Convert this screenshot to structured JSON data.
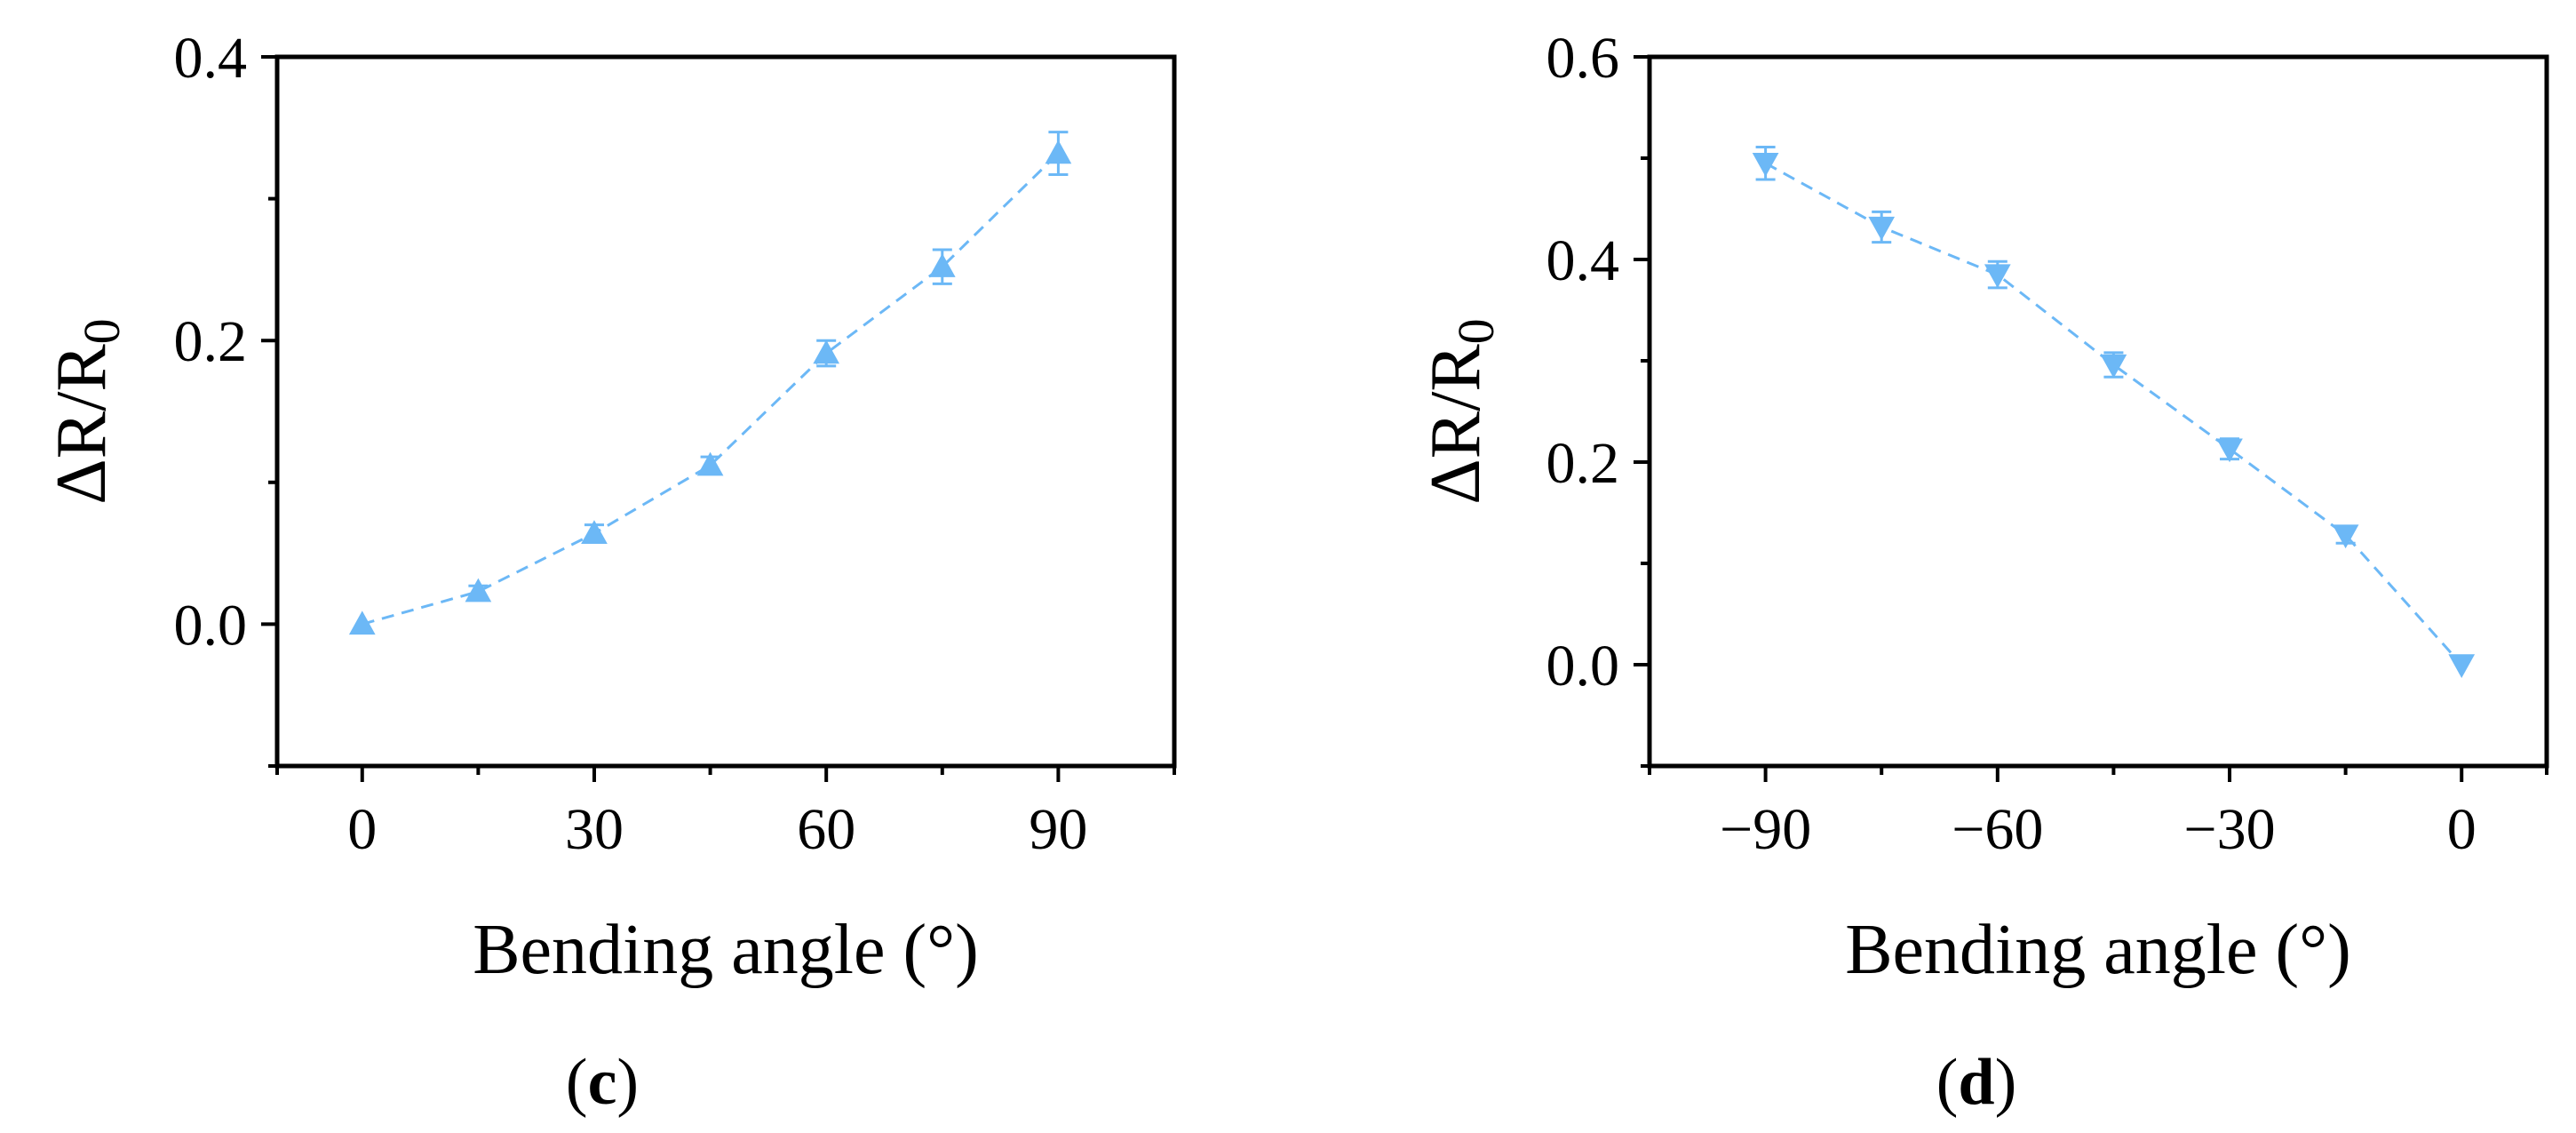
{
  "style": {
    "series_color": "#6cb8f6",
    "axis_color": "#000000"
  },
  "chart_data": [
    {
      "type": "scatter",
      "panel_label": "c",
      "xlabel": "Bending angle (°)",
      "ylabel": "ΔR/R",
      "ylabel_subscript": "0",
      "xlim": [
        -11,
        105
      ],
      "ylim": [
        -0.1,
        0.4
      ],
      "xticks": [
        0,
        30,
        60,
        90
      ],
      "xtick_labels": [
        "0",
        "30",
        "60",
        "90"
      ],
      "yticks": [
        0.0,
        0.2,
        0.4
      ],
      "ytick_labels": [
        "0.0",
        "0.2",
        "0.4"
      ],
      "marker": "triangle-up",
      "line_style": "dashed",
      "grid": false,
      "series": [
        {
          "x": [
            0,
            15,
            30,
            45,
            60,
            75,
            90
          ],
          "y": [
            0.0,
            0.023,
            0.064,
            0.112,
            0.191,
            0.252,
            0.332
          ],
          "error": [
            0.0,
            0.004,
            0.006,
            0.006,
            0.009,
            0.012,
            0.015
          ]
        }
      ]
    },
    {
      "type": "scatter",
      "panel_label": "d",
      "xlabel": "Bending angle (°)",
      "ylabel": "ΔR/R",
      "ylabel_subscript": "0",
      "xlim": [
        -105,
        11
      ],
      "ylim": [
        -0.1,
        0.6
      ],
      "xticks": [
        -90,
        -60,
        -30,
        0
      ],
      "xtick_labels": [
        "−90",
        "−60",
        "−30",
        "0"
      ],
      "yticks": [
        0.0,
        0.2,
        0.4,
        0.6
      ],
      "ytick_labels": [
        "0.0",
        "0.2",
        "0.4",
        "0.6"
      ],
      "marker": "triangle-down",
      "line_style": "dashed",
      "grid": false,
      "series": [
        {
          "x": [
            -90,
            -75,
            -60,
            -45,
            -30,
            -15,
            0
          ],
          "y": [
            0.495,
            0.432,
            0.385,
            0.296,
            0.213,
            0.128,
            0.0
          ],
          "error": [
            0.016,
            0.015,
            0.013,
            0.012,
            0.01,
            0.008,
            0.0
          ]
        }
      ]
    }
  ]
}
